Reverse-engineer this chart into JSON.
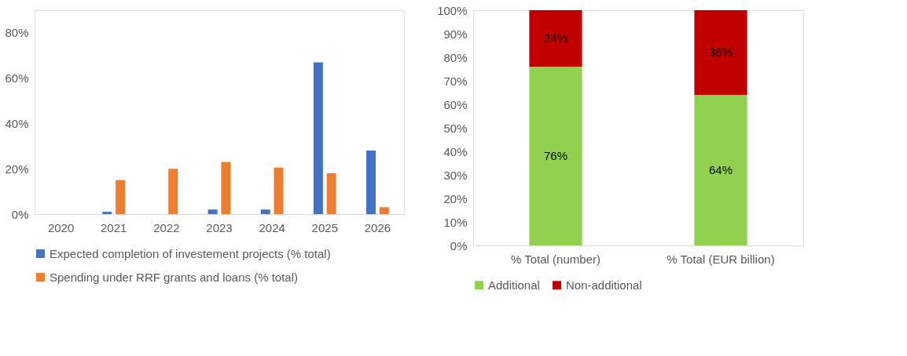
{
  "chart_data": [
    {
      "type": "bar",
      "categories": [
        "2020",
        "2021",
        "2022",
        "2023",
        "2024",
        "2025",
        "2026"
      ],
      "ylim": [
        0,
        90
      ],
      "yticks": [
        {
          "value": 0,
          "label": "0%"
        },
        {
          "value": 20,
          "label": "20%"
        },
        {
          "value": 40,
          "label": "40%"
        },
        {
          "value": 60,
          "label": "60%"
        },
        {
          "value": 80,
          "label": "80%"
        }
      ],
      "grid": false,
      "legend": "bottom",
      "series": [
        {
          "name": "Expected completion of investement projects (% total)",
          "color": "#4472c4",
          "values": [
            null,
            1,
            null,
            2,
            2,
            67,
            28
          ]
        },
        {
          "name": "Spending under RRF grants and loans (% total)",
          "color": "#ed7d31",
          "values": [
            null,
            15,
            20,
            23,
            20.5,
            18,
            3
          ]
        }
      ]
    },
    {
      "type": "bar",
      "stacked": true,
      "categories": [
        "% Total (number)",
        "% Total (EUR billion)"
      ],
      "ylim": [
        0,
        100
      ],
      "yticks": [
        {
          "value": 0,
          "label": "0%"
        },
        {
          "value": 10,
          "label": "10%"
        },
        {
          "value": 20,
          "label": "20%"
        },
        {
          "value": 30,
          "label": "30%"
        },
        {
          "value": 40,
          "label": "40%"
        },
        {
          "value": 50,
          "label": "50%"
        },
        {
          "value": 60,
          "label": "60%"
        },
        {
          "value": 70,
          "label": "70%"
        },
        {
          "value": 80,
          "label": "80%"
        },
        {
          "value": 90,
          "label": "90%"
        },
        {
          "value": 100,
          "label": "100%"
        }
      ],
      "grid": false,
      "legend": "bottom",
      "series": [
        {
          "name": "Additional",
          "color": "#92d050",
          "values": [
            76,
            64
          ],
          "value_labels": [
            "76%",
            "64%"
          ]
        },
        {
          "name": "Non-additional",
          "color": "#c00000",
          "values": [
            24,
            36
          ],
          "value_labels": [
            "24%",
            "36%"
          ]
        }
      ]
    }
  ]
}
